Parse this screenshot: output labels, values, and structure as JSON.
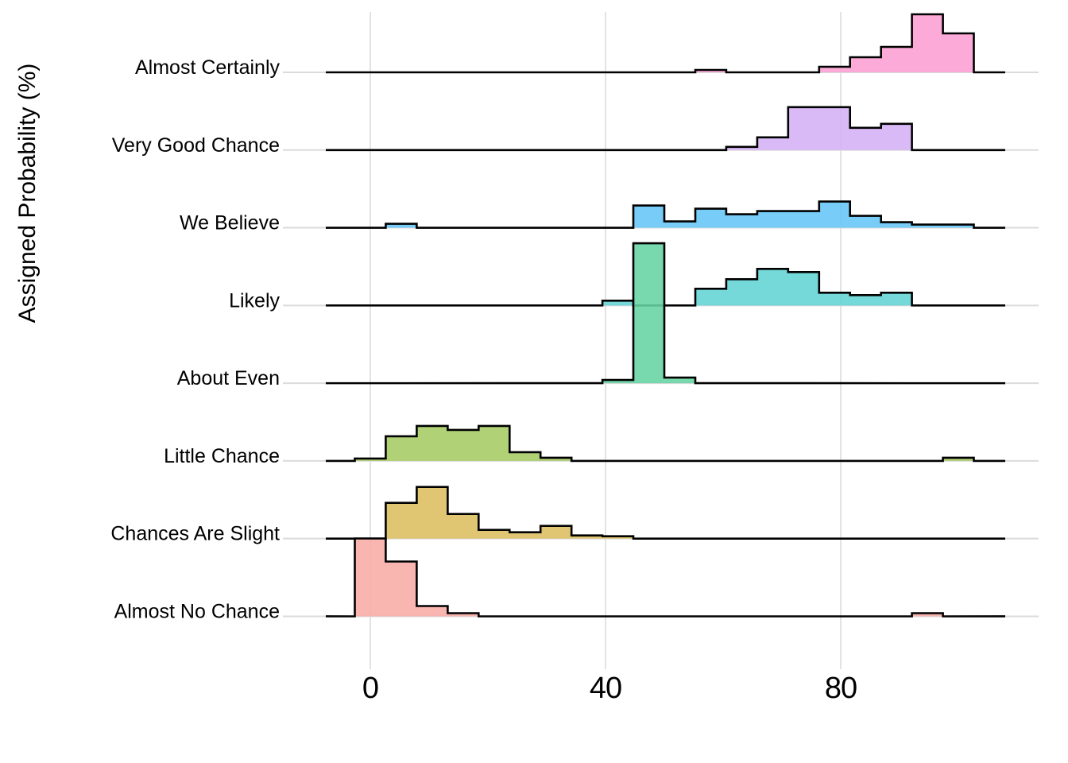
{
  "chart_data": {
    "type": "ridgeline_histogram",
    "title": "",
    "xlabel": "",
    "ylabel": "Assigned Probability (%)",
    "x_ticks": [
      {
        "label": "0",
        "value": 0
      },
      {
        "label": "40",
        "value": 40
      },
      {
        "label": "80",
        "value": 80
      }
    ],
    "xlim": [
      -7.5,
      108
    ],
    "grid": "vertical-only",
    "legend": "none",
    "bins": {
      "count": 20,
      "width_percent": 5.263,
      "first_edge_percent": -2.632,
      "centers_percent": [
        0,
        5.3,
        10.5,
        15.8,
        21.1,
        26.3,
        31.6,
        36.8,
        42.1,
        47.4,
        52.6,
        57.9,
        63.2,
        68.4,
        73.7,
        78.9,
        84.2,
        89.5,
        94.7,
        100
      ]
    },
    "rows": [
      {
        "label": "Almost Certainly",
        "color": "#FC9ED3",
        "heights": [
          0,
          0,
          0,
          0,
          0,
          0,
          0,
          0,
          0,
          0,
          0,
          3,
          0,
          0,
          0,
          7,
          19,
          32,
          73,
          49
        ]
      },
      {
        "label": "Very Good Chance",
        "color": "#D5B0F5",
        "heights": [
          0,
          0,
          0,
          0,
          0,
          0,
          0,
          0,
          0,
          0,
          0,
          0,
          4,
          16,
          54,
          54,
          28,
          33,
          0,
          0
        ]
      },
      {
        "label": "We Believe",
        "color": "#64C5F7",
        "heights": [
          0,
          5,
          0,
          0,
          0,
          0,
          0,
          0,
          0,
          28,
          8,
          24,
          17,
          21,
          21,
          33,
          15,
          7,
          4,
          4
        ]
      },
      {
        "label": "Likely",
        "color": "#62D4D4",
        "heights": [
          0,
          0,
          0,
          0,
          0,
          0,
          0,
          0,
          6,
          0,
          0,
          21,
          33,
          46,
          42,
          16,
          13,
          16,
          0,
          0
        ]
      },
      {
        "label": "About Even",
        "color": "#65D3A3",
        "heights": [
          0,
          0,
          0,
          0,
          0,
          0,
          0,
          0,
          4,
          176,
          7,
          0,
          0,
          0,
          0,
          0,
          0,
          0,
          0,
          0
        ]
      },
      {
        "label": "Little Chance",
        "color": "#A5CB62",
        "heights": [
          3,
          31,
          44,
          39,
          44,
          11,
          4,
          0,
          0,
          0,
          0,
          0,
          0,
          0,
          0,
          0,
          0,
          0,
          0,
          4
        ]
      },
      {
        "label": "Chances Are Slight",
        "color": "#DCBD5E",
        "heights": [
          0,
          45,
          65,
          31,
          11,
          8,
          16,
          4,
          3,
          0,
          0,
          0,
          0,
          0,
          0,
          0,
          0,
          0,
          0,
          0
        ]
      },
      {
        "label": "Almost No Chance",
        "color": "#F8ACA6",
        "heights": [
          98,
          69,
          13,
          4,
          0,
          0,
          0,
          0,
          0,
          0,
          0,
          0,
          0,
          0,
          0,
          0,
          0,
          0,
          4,
          0
        ]
      }
    ],
    "style_colors": {
      "outline": "#000000",
      "gridline": "#E3E3E3",
      "baseline_tick": "#DBDBDB",
      "text": "#000000",
      "background": "#FFFFFF"
    }
  }
}
